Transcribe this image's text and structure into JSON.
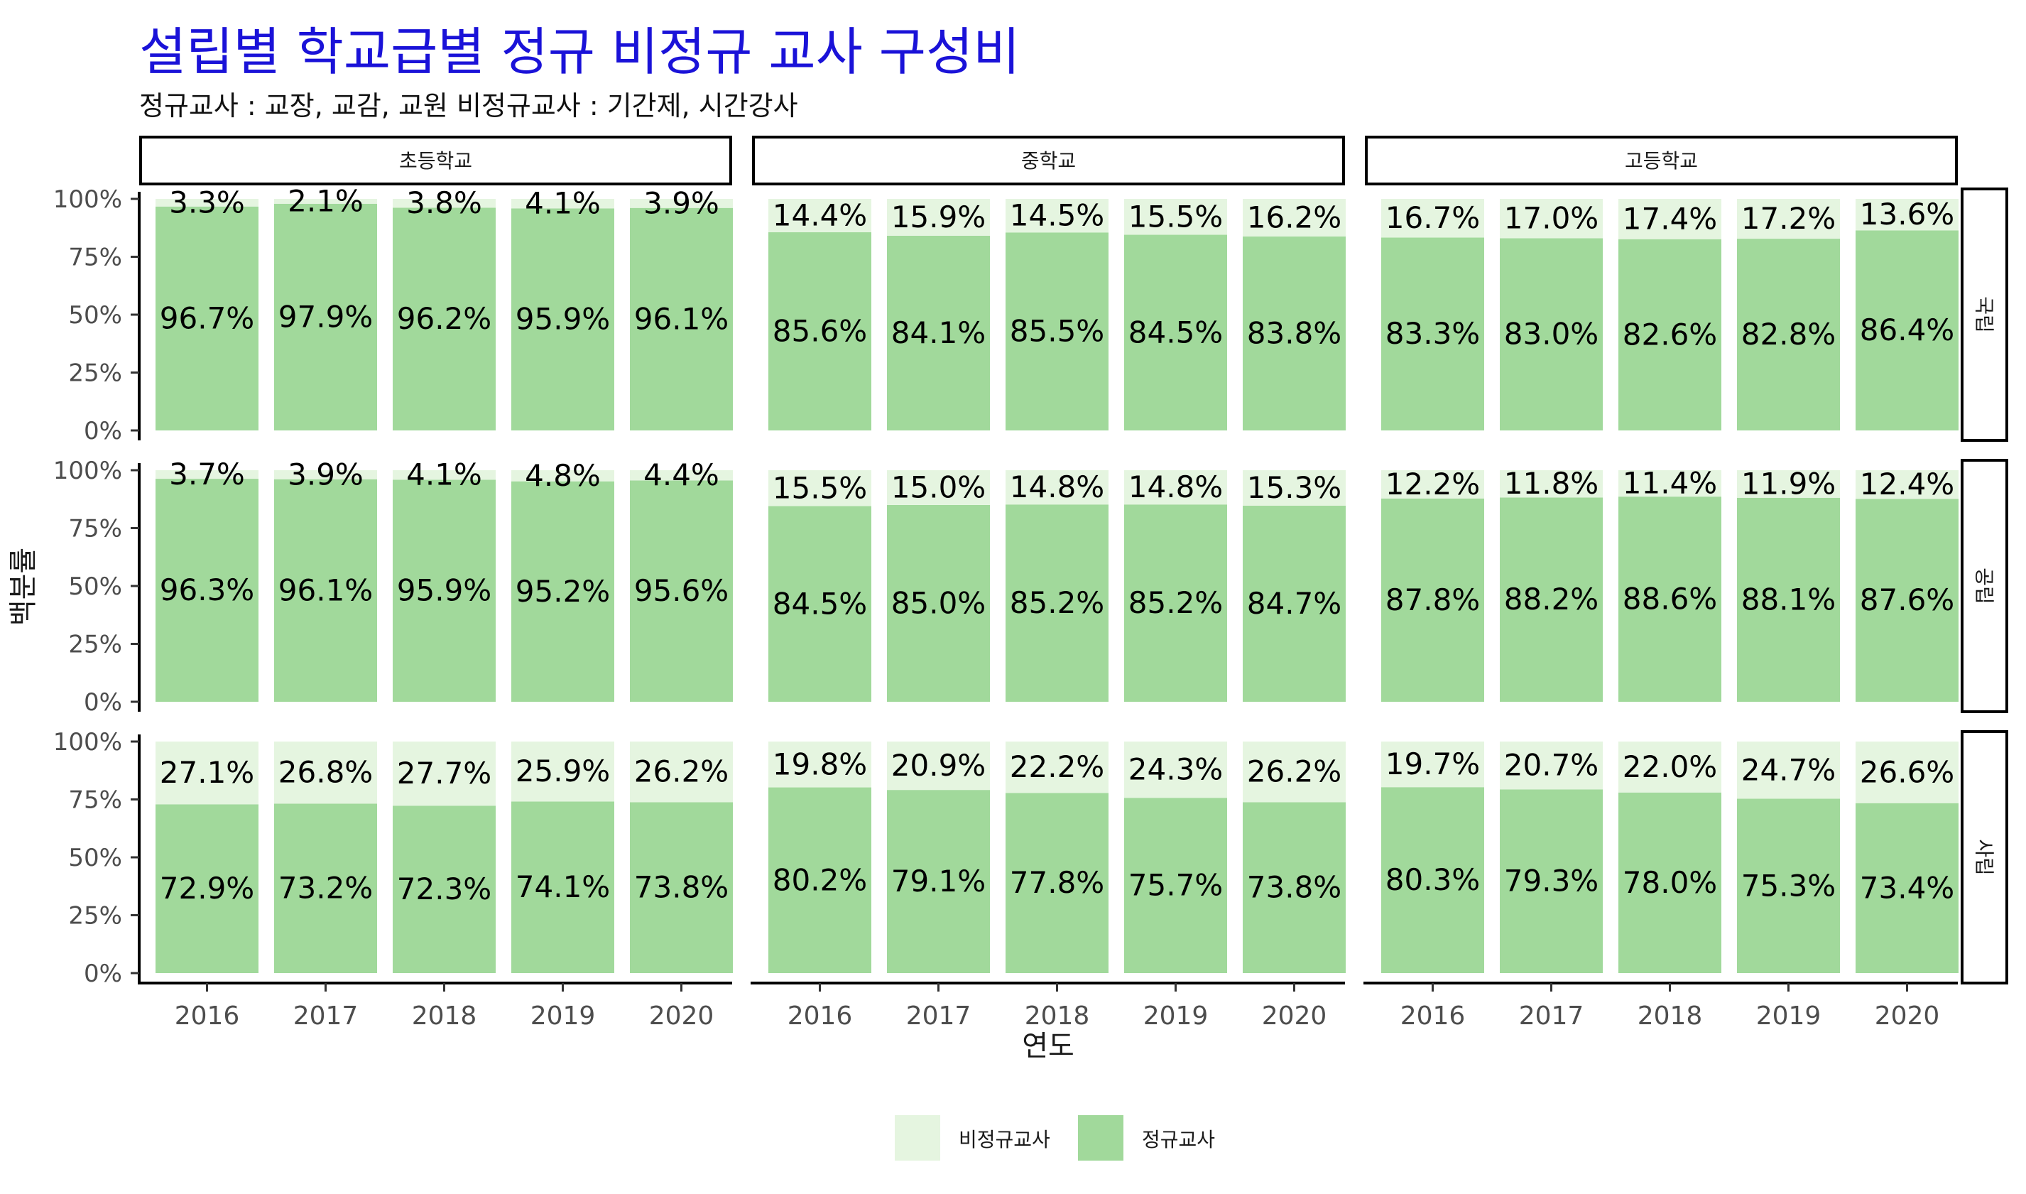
{
  "title": "설립별 학교급별 정규 비정규 교사 구성비",
  "subtitle": "정규교사 : 교장, 교감, 교원 비정규교사 : 기간제, 시간강사",
  "colors": {
    "title": "#1a12d8",
    "regular": "#a1d99b",
    "nonregular": "#e5f5e0"
  },
  "chart_data": {
    "type": "bar",
    "stacked": true,
    "xlabel": "연도",
    "ylabel": "백분률",
    "ylim": [
      0,
      100
    ],
    "yticks": [
      "0%",
      "25%",
      "50%",
      "75%",
      "100%"
    ],
    "years": [
      "2016",
      "2017",
      "2018",
      "2019",
      "2020"
    ],
    "col_facets": [
      "초등학교",
      "중학교",
      "고등학교"
    ],
    "row_facets": [
      "국립",
      "공립",
      "사립"
    ],
    "legend": {
      "position": "bottom",
      "items": [
        "비정규교사",
        "정규교사"
      ]
    },
    "panels": [
      {
        "row": "국립",
        "col": "초등학교",
        "regular": [
          96.7,
          97.9,
          96.2,
          95.9,
          96.1
        ],
        "nonregular": [
          3.3,
          2.1,
          3.8,
          4.1,
          3.9
        ],
        "regular_labels": [
          "96.7%",
          "97.9%",
          "96.2%",
          "95.9%",
          "96.1%"
        ],
        "nonregular_labels": [
          "3.3%",
          "2.1%",
          "3.8%",
          "4.1%",
          "3.9%"
        ]
      },
      {
        "row": "국립",
        "col": "중학교",
        "regular": [
          85.6,
          84.1,
          85.5,
          84.5,
          83.8
        ],
        "nonregular": [
          14.4,
          15.9,
          14.5,
          15.5,
          16.2
        ],
        "regular_labels": [
          "85.6%",
          "84.1%",
          "85.5%",
          "84.5%",
          "83.8%"
        ],
        "nonregular_labels": [
          "14.4%",
          "15.9%",
          "14.5%",
          "15.5%",
          "16.2%"
        ]
      },
      {
        "row": "국립",
        "col": "고등학교",
        "regular": [
          83.3,
          83.0,
          82.6,
          82.8,
          86.4
        ],
        "nonregular": [
          16.7,
          17.0,
          17.4,
          17.2,
          13.6
        ],
        "regular_labels": [
          "83.3%",
          "83.0%",
          "82.6%",
          "82.8%",
          "86.4%"
        ],
        "nonregular_labels": [
          "16.7%",
          "17.0%",
          "17.4%",
          "17.2%",
          "13.6%"
        ]
      },
      {
        "row": "공립",
        "col": "초등학교",
        "regular": [
          96.3,
          96.1,
          95.9,
          95.2,
          95.6
        ],
        "nonregular": [
          3.7,
          3.9,
          4.1,
          4.8,
          4.4
        ],
        "regular_labels": [
          "96.3%",
          "96.1%",
          "95.9%",
          "95.2%",
          "95.6%"
        ],
        "nonregular_labels": [
          "3.7%",
          "3.9%",
          "4.1%",
          "4.8%",
          "4.4%"
        ]
      },
      {
        "row": "공립",
        "col": "중학교",
        "regular": [
          84.5,
          85.0,
          85.2,
          85.2,
          84.7
        ],
        "nonregular": [
          15.5,
          15.0,
          14.8,
          14.8,
          15.3
        ],
        "regular_labels": [
          "84.5%",
          "85.0%",
          "85.2%",
          "85.2%",
          "84.7%"
        ],
        "nonregular_labels": [
          "15.5%",
          "15.0%",
          "14.8%",
          "14.8%",
          "15.3%"
        ]
      },
      {
        "row": "공립",
        "col": "고등학교",
        "regular": [
          87.8,
          88.2,
          88.6,
          88.1,
          87.6
        ],
        "nonregular": [
          12.2,
          11.8,
          11.4,
          11.9,
          12.4
        ],
        "regular_labels": [
          "87.8%",
          "88.2%",
          "88.6%",
          "88.1%",
          "87.6%"
        ],
        "nonregular_labels": [
          "12.2%",
          "11.8%",
          "11.4%",
          "11.9%",
          "12.4%"
        ]
      },
      {
        "row": "사립",
        "col": "초등학교",
        "regular": [
          72.9,
          73.2,
          72.3,
          74.1,
          73.8
        ],
        "nonregular": [
          27.1,
          26.8,
          27.7,
          25.9,
          26.2
        ],
        "regular_labels": [
          "72.9%",
          "73.2%",
          "72.3%",
          "74.1%",
          "73.8%"
        ],
        "nonregular_labels": [
          "27.1%",
          "26.8%",
          "27.7%",
          "25.9%",
          "26.2%"
        ]
      },
      {
        "row": "사립",
        "col": "중학교",
        "regular": [
          80.2,
          79.1,
          77.8,
          75.7,
          73.8
        ],
        "nonregular": [
          19.8,
          20.9,
          22.2,
          24.3,
          26.2
        ],
        "regular_labels": [
          "80.2%",
          "79.1%",
          "77.8%",
          "75.7%",
          "73.8%"
        ],
        "nonregular_labels": [
          "19.8%",
          "20.9%",
          "22.2%",
          "24.3%",
          "26.2%"
        ]
      },
      {
        "row": "사립",
        "col": "고등학교",
        "regular": [
          80.3,
          79.3,
          78.0,
          75.3,
          73.4
        ],
        "nonregular": [
          19.7,
          20.7,
          22.0,
          24.7,
          26.6
        ],
        "regular_labels": [
          "80.3%",
          "79.3%",
          "78.0%",
          "75.3%",
          "73.4%"
        ],
        "nonregular_labels": [
          "19.7%",
          "20.7%",
          "22.0%",
          "24.7%",
          "26.6%"
        ]
      }
    ]
  }
}
